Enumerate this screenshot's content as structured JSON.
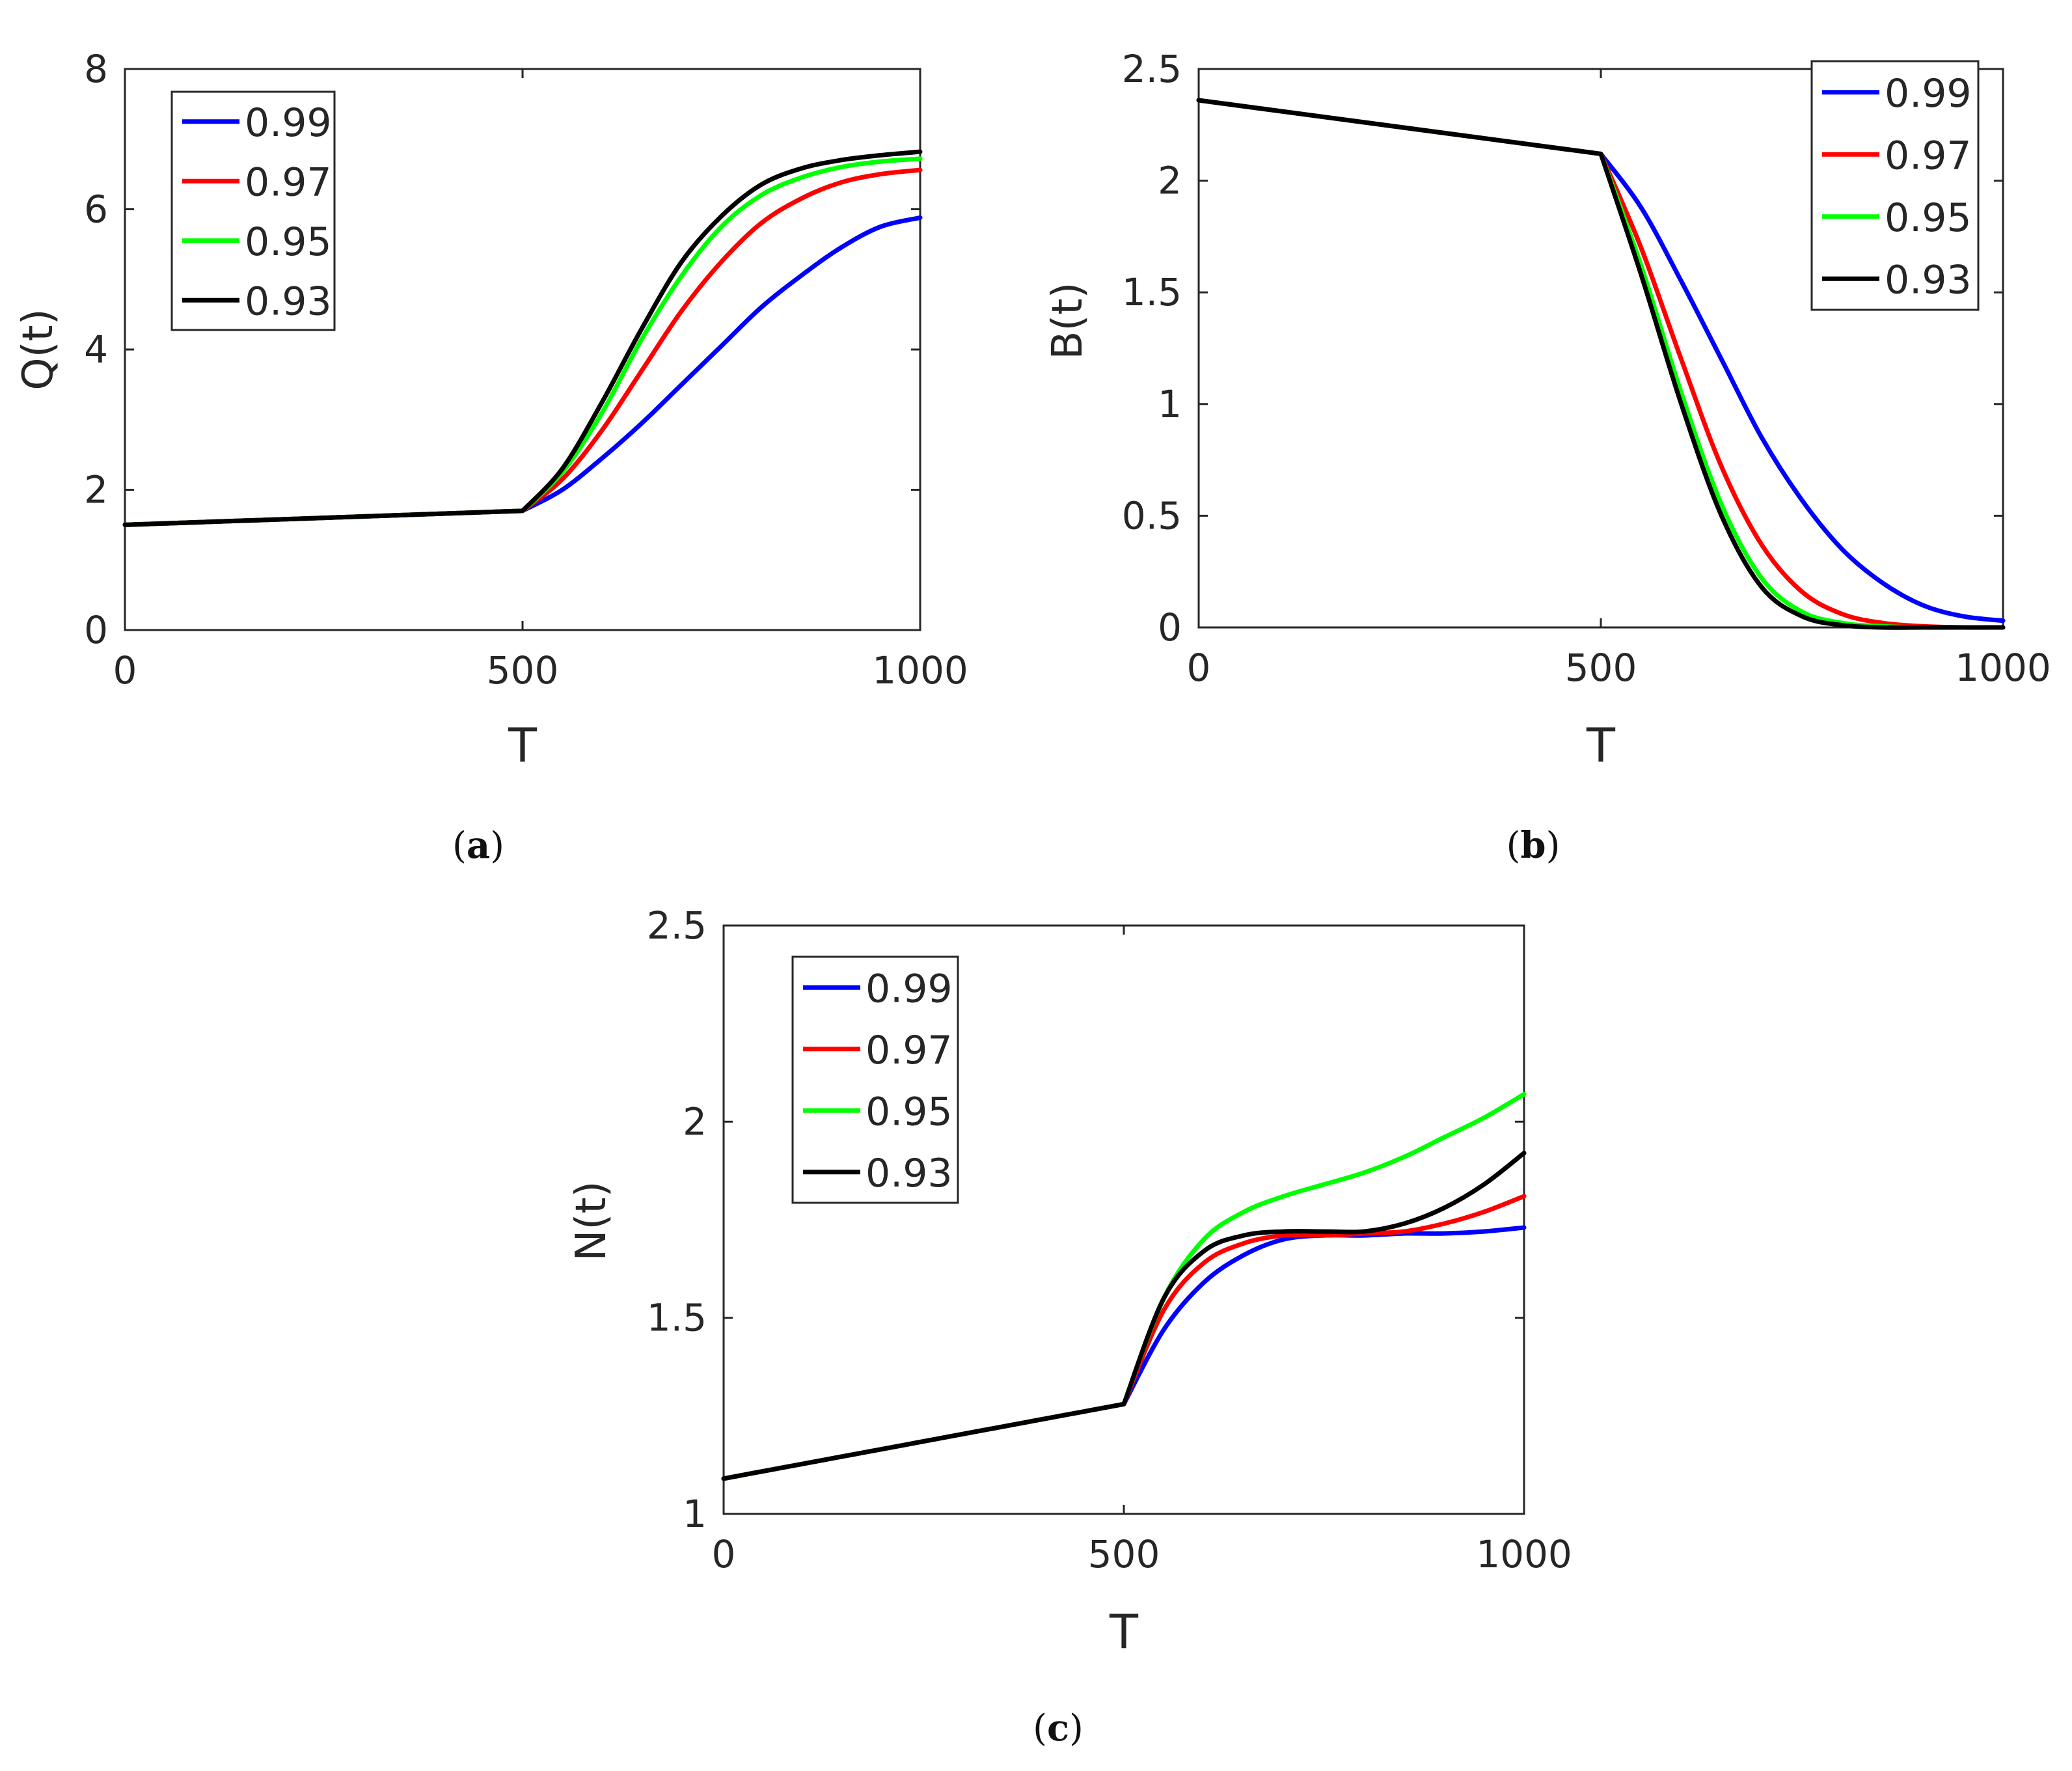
{
  "chart_data": [
    {
      "type": "line",
      "panel_label": "(a)",
      "caption_letter": "a",
      "xlabel": "T",
      "ylabel": "Q(t)",
      "xlim": [
        0,
        1000
      ],
      "ylim": [
        0,
        8
      ],
      "xticks": [
        "0",
        "500",
        "1000"
      ],
      "yticks": [
        "0",
        "2",
        "4",
        "6",
        "8"
      ],
      "legend_position": "top-left",
      "x": [
        0,
        500,
        550,
        600,
        650,
        700,
        750,
        800,
        850,
        900,
        950,
        1000
      ],
      "series": [
        {
          "name": "0.99",
          "color": "#0000ff",
          "values": [
            1.5,
            1.7,
            2.0,
            2.45,
            2.95,
            3.5,
            4.05,
            4.6,
            5.05,
            5.45,
            5.75,
            5.88
          ]
        },
        {
          "name": "0.97",
          "color": "#ff0000",
          "values": [
            1.5,
            1.7,
            2.15,
            2.85,
            3.7,
            4.55,
            5.25,
            5.8,
            6.15,
            6.38,
            6.5,
            6.56
          ]
        },
        {
          "name": "0.95",
          "color": "#00ff00",
          "values": [
            1.5,
            1.7,
            2.25,
            3.1,
            4.15,
            5.05,
            5.75,
            6.2,
            6.45,
            6.6,
            6.68,
            6.72
          ]
        },
        {
          "name": "0.93",
          "color": "#000000",
          "values": [
            1.5,
            1.7,
            2.3,
            3.25,
            4.3,
            5.25,
            5.9,
            6.35,
            6.58,
            6.7,
            6.77,
            6.82
          ]
        }
      ]
    },
    {
      "type": "line",
      "panel_label": "(b)",
      "caption_letter": "b",
      "xlabel": "T",
      "ylabel": "B(t)",
      "xlim": [
        0,
        1000
      ],
      "ylim": [
        0,
        2.5
      ],
      "xticks": [
        "0",
        "500",
        "1000"
      ],
      "yticks": [
        "0",
        "0.5",
        "1",
        "1.5",
        "2",
        "2.5"
      ],
      "legend_position": "top-right",
      "x": [
        0,
        500,
        550,
        600,
        650,
        700,
        750,
        800,
        850,
        900,
        950,
        1000
      ],
      "series": [
        {
          "name": "0.99",
          "color": "#0000ff",
          "values": [
            2.36,
            2.12,
            1.88,
            1.55,
            1.2,
            0.85,
            0.57,
            0.35,
            0.2,
            0.1,
            0.05,
            0.03
          ]
        },
        {
          "name": "0.97",
          "color": "#ff0000",
          "values": [
            2.36,
            2.12,
            1.7,
            1.2,
            0.72,
            0.37,
            0.16,
            0.06,
            0.02,
            0.005,
            0.0,
            0.0
          ]
        },
        {
          "name": "0.95",
          "color": "#00ff00",
          "values": [
            2.36,
            2.12,
            1.62,
            1.05,
            0.55,
            0.22,
            0.07,
            0.02,
            0.005,
            0.0,
            0.0,
            0.0
          ]
        },
        {
          "name": "0.93",
          "color": "#000000",
          "values": [
            2.36,
            2.12,
            1.58,
            1.0,
            0.5,
            0.18,
            0.05,
            0.01,
            0.0,
            0.0,
            0.0,
            0.0
          ]
        }
      ]
    },
    {
      "type": "line",
      "panel_label": "(c)",
      "caption_letter": "c",
      "xlabel": "T",
      "ylabel": "N(t)",
      "xlim": [
        0,
        1000
      ],
      "ylim": [
        1,
        2.5
      ],
      "xticks": [
        "0",
        "500",
        "1000"
      ],
      "yticks": [
        "1",
        "1.5",
        "2",
        "2.5"
      ],
      "legend_position": "top-left",
      "x": [
        0,
        500,
        550,
        600,
        650,
        700,
        750,
        800,
        850,
        900,
        950,
        1000
      ],
      "series": [
        {
          "name": "0.99",
          "color": "#0000ff",
          "values": [
            1.09,
            1.28,
            1.47,
            1.59,
            1.66,
            1.7,
            1.71,
            1.71,
            1.715,
            1.715,
            1.72,
            1.73
          ]
        },
        {
          "name": "0.97",
          "color": "#ff0000",
          "values": [
            1.09,
            1.28,
            1.52,
            1.64,
            1.69,
            1.71,
            1.71,
            1.715,
            1.72,
            1.74,
            1.77,
            1.81
          ]
        },
        {
          "name": "0.95",
          "color": "#00ff00",
          "values": [
            1.09,
            1.28,
            1.55,
            1.7,
            1.77,
            1.81,
            1.84,
            1.87,
            1.91,
            1.96,
            2.01,
            2.07
          ]
        },
        {
          "name": "0.93",
          "color": "#000000",
          "values": [
            1.09,
            1.28,
            1.55,
            1.67,
            1.71,
            1.72,
            1.72,
            1.72,
            1.74,
            1.78,
            1.84,
            1.92
          ]
        }
      ]
    }
  ]
}
